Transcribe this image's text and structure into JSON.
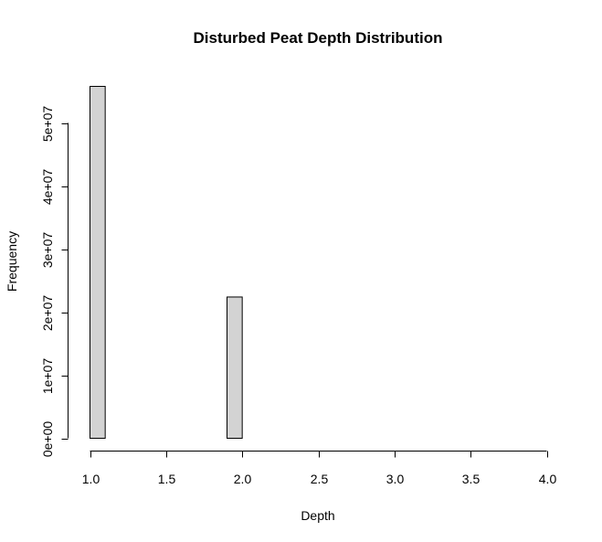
{
  "chart_data": {
    "type": "bar",
    "title": "Disturbed Peat Depth Distribution",
    "xlabel": "Depth",
    "ylabel": "Frequency",
    "xlim": [
      1.0,
      4.0
    ],
    "ylim": [
      0,
      55800000
    ],
    "x_ticks": [
      "1.0",
      "1.5",
      "2.0",
      "2.5",
      "3.0",
      "3.5",
      "4.0"
    ],
    "x_tick_values": [
      1.0,
      1.5,
      2.0,
      2.5,
      3.0,
      3.5,
      4.0
    ],
    "y_ticks": [
      "0e+00",
      "1e+07",
      "2e+07",
      "3e+07",
      "4e+07",
      "5e+07"
    ],
    "y_tick_values": [
      0,
      10000000,
      20000000,
      30000000,
      40000000,
      50000000
    ],
    "bin_width": 0.1,
    "bins": [
      {
        "start": 1.0,
        "end": 1.1,
        "count": 55800000
      },
      {
        "start": 1.1,
        "end": 1.2,
        "count": 0
      },
      {
        "start": 1.2,
        "end": 1.3,
        "count": 0
      },
      {
        "start": 1.3,
        "end": 1.4,
        "count": 0
      },
      {
        "start": 1.4,
        "end": 1.5,
        "count": 0
      },
      {
        "start": 1.5,
        "end": 1.6,
        "count": 0
      },
      {
        "start": 1.6,
        "end": 1.7,
        "count": 0
      },
      {
        "start": 1.7,
        "end": 1.8,
        "count": 0
      },
      {
        "start": 1.8,
        "end": 1.9,
        "count": 0
      },
      {
        "start": 1.9,
        "end": 2.0,
        "count": 22400000
      },
      {
        "start": 2.0,
        "end": 2.1,
        "count": 0
      },
      {
        "start": 2.1,
        "end": 2.2,
        "count": 0
      },
      {
        "start": 2.2,
        "end": 2.3,
        "count": 0
      },
      {
        "start": 2.3,
        "end": 2.4,
        "count": 0
      },
      {
        "start": 2.4,
        "end": 2.5,
        "count": 0
      },
      {
        "start": 2.5,
        "end": 2.6,
        "count": 0
      },
      {
        "start": 2.6,
        "end": 2.7,
        "count": 0
      },
      {
        "start": 2.7,
        "end": 2.8,
        "count": 0
      },
      {
        "start": 2.8,
        "end": 2.9,
        "count": 0
      },
      {
        "start": 2.9,
        "end": 3.0,
        "count": 0
      },
      {
        "start": 3.0,
        "end": 3.1,
        "count": 0
      },
      {
        "start": 3.1,
        "end": 3.2,
        "count": 0
      },
      {
        "start": 3.2,
        "end": 3.3,
        "count": 0
      },
      {
        "start": 3.3,
        "end": 3.4,
        "count": 0
      },
      {
        "start": 3.4,
        "end": 3.5,
        "count": 0
      },
      {
        "start": 3.5,
        "end": 3.6,
        "count": 0
      },
      {
        "start": 3.6,
        "end": 3.7,
        "count": 0
      },
      {
        "start": 3.7,
        "end": 3.8,
        "count": 0
      },
      {
        "start": 3.8,
        "end": 3.9,
        "count": 0
      },
      {
        "start": 3.9,
        "end": 4.0,
        "count": 0
      }
    ],
    "bar_fill": "#d3d3d3",
    "bar_stroke": "#000000",
    "grid": false,
    "legend": "none"
  }
}
